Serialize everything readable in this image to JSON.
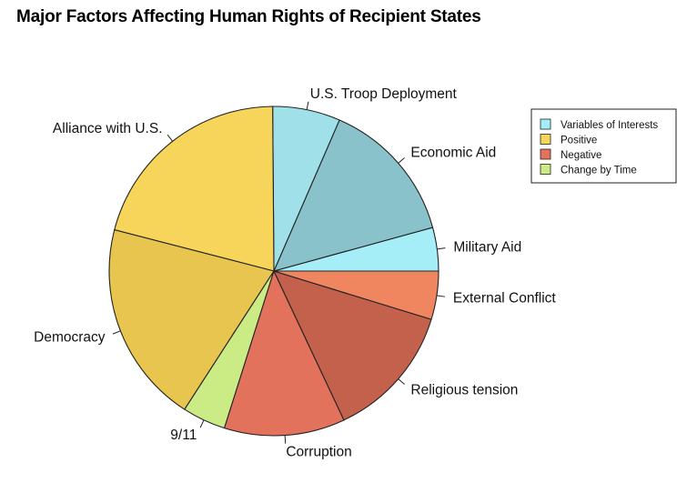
{
  "chart_data": {
    "type": "pie",
    "title": "Major Factors Affecting Human Rights of Recipient States",
    "start_angle_deg": 0,
    "direction": "counterclockwise",
    "slices": [
      {
        "label": "Military Aid",
        "value": 4.5,
        "color": "#A6EEF7",
        "group": "Variables of Interests"
      },
      {
        "label": "Economic Aid",
        "value": 15,
        "color": "#8AC2CC",
        "group": "Variables of Interests"
      },
      {
        "label": "U.S. Troop Deployment",
        "value": 7,
        "color": "#A0E1E9",
        "group": "Variables of Interests"
      },
      {
        "label": "Alliance with U.S.",
        "value": 22,
        "color": "#F7D55A",
        "group": "Positive"
      },
      {
        "label": "Democracy",
        "value": 21,
        "color": "#E8C54E",
        "group": "Positive"
      },
      {
        "label": "9/11",
        "value": 4.5,
        "color": "#CBEB84",
        "group": "Change by Time"
      },
      {
        "label": "Corruption",
        "value": 12.5,
        "color": "#E3725C",
        "group": "Negative"
      },
      {
        "label": "Religious tension",
        "value": 14,
        "color": "#C4614D",
        "group": "Negative"
      },
      {
        "label": "External Conflict",
        "value": 5,
        "color": "#F08660",
        "group": "Negative"
      }
    ],
    "legend": {
      "position": "right",
      "entries": [
        {
          "label": "Variables of Interests",
          "color": "#A6EEF7"
        },
        {
          "label": "Positive",
          "color": "#F7D55A"
        },
        {
          "label": "Negative",
          "color": "#E3725C"
        },
        {
          "label": "Change by Time",
          "color": "#CBEB84"
        }
      ]
    }
  }
}
